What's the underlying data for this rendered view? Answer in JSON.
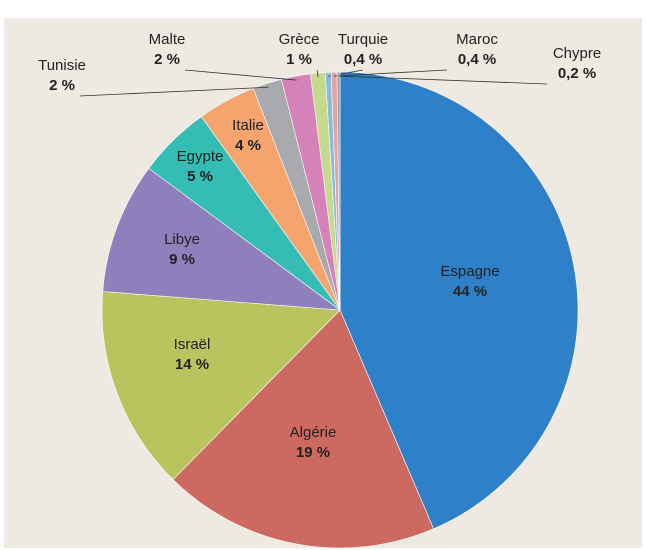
{
  "chart_data": {
    "type": "pie",
    "categories": [
      "Espagne",
      "Algérie",
      "Israël",
      "Libye",
      "Egypte",
      "Italie",
      "Tunisie",
      "Malte",
      "Grèce",
      "Turquie",
      "Maroc",
      "Chypre"
    ],
    "values": [
      44,
      19,
      14,
      9,
      5,
      4,
      2,
      2,
      1,
      0.4,
      0.4,
      0.2
    ],
    "value_labels": [
      "44 %",
      "19 %",
      "14 %",
      "9 %",
      "5 %",
      "4 %",
      "2 %",
      "2 %",
      "1 %",
      "0,4 %",
      "0,4 %",
      "0,2 %"
    ],
    "colors": [
      "#2e81c8",
      "#cc6961",
      "#b9c45e",
      "#8f80bd",
      "#35bdb5",
      "#f5a46e",
      "#a9aaad",
      "#d482b8",
      "#c6da8d",
      "#86bddc",
      "#e3a3a0",
      "#9fa0a2"
    ]
  }
}
